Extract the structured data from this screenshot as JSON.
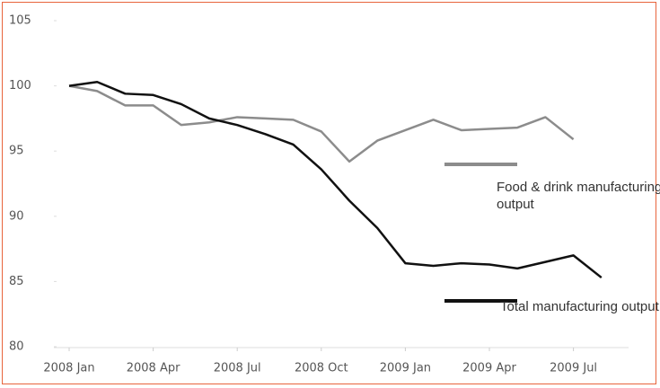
{
  "chart_data": {
    "type": "line",
    "categories": [
      "2008 Jan",
      null,
      null,
      "2008 Apr",
      null,
      null,
      "2008 Jul",
      null,
      null,
      "2008 Oct",
      null,
      null,
      "2009 Jan",
      null,
      null,
      "2009 Apr",
      null,
      null,
      "2009 Jul",
      null
    ],
    "series": [
      {
        "name": "Food & drink manufacturing output",
        "color": "#8c8c8c",
        "values": [
          100,
          99.6,
          98.5,
          98.5,
          97.0,
          97.2,
          97.6,
          97.5,
          97.4,
          96.5,
          94.2,
          95.8,
          96.6,
          97.4,
          96.6,
          96.7,
          96.8,
          97.6,
          95.9,
          null
        ]
      },
      {
        "name": "Total manufacturing output",
        "color": "#111111",
        "values": [
          100,
          100.3,
          99.4,
          99.3,
          98.6,
          97.5,
          97.0,
          96.3,
          95.5,
          93.6,
          91.2,
          89.1,
          86.4,
          86.2,
          86.4,
          86.3,
          86.0,
          86.5,
          87.0,
          85.3
        ]
      }
    ],
    "ylim": [
      80,
      105
    ],
    "yticks": [
      80,
      85,
      90,
      95,
      100,
      105
    ]
  }
}
